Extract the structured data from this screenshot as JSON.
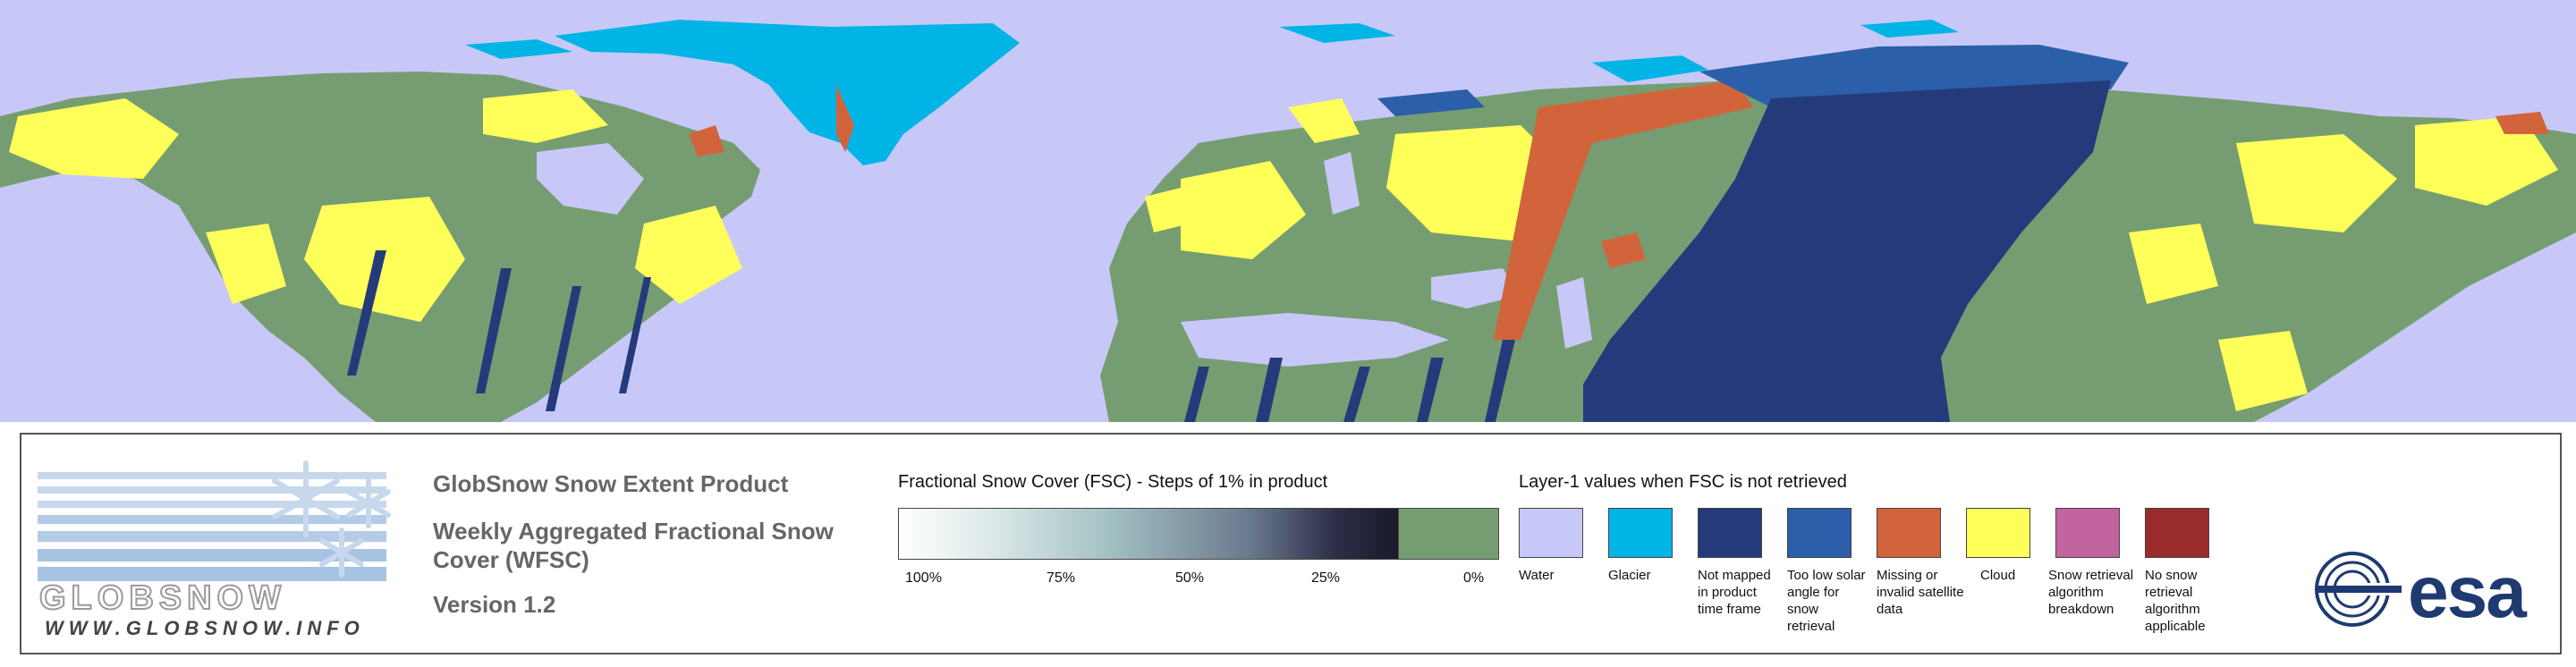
{
  "map": {
    "colors": {
      "water": "#c8c8f8",
      "glacier": "#00b4e6",
      "not_mapped": "#253a7a",
      "too_low_solar": "#2c5faa",
      "missing": "#d2643c",
      "cloud": "#ffff5a",
      "land_0": "#769d72"
    }
  },
  "legend": {
    "product_title": "GlobSnow Snow Extent Product",
    "product_subtitle": "Weekly Aggregated Fractional Snow Cover (WFSC)",
    "version": "Version 1.2",
    "fsc_title": "Fractional Snow Cover (FSC) - Steps of 1% in product",
    "fsc_ticks": [
      "100%",
      "75%",
      "50%",
      "25%",
      "0%"
    ],
    "layer_title": "Layer-1 values when FSC is not retrieved",
    "layer_items": [
      {
        "label": "Water",
        "color": "#c8c8f8"
      },
      {
        "label": "Glacier",
        "color": "#00b4e6"
      },
      {
        "label": "Not mapped in product time frame",
        "color": "#253a7a"
      },
      {
        "label": "Too low solar angle for snow retrieval",
        "color": "#2c5faa"
      },
      {
        "label": "Missing or invalid satellite data",
        "color": "#d2643c"
      },
      {
        "label": "Cloud",
        "color": "#ffff5a"
      },
      {
        "label": "Snow retrieval algorithm breakdown",
        "color": "#c264a0"
      },
      {
        "label": "No snow retrieval algorithm applicable",
        "color": "#9a2c2c"
      }
    ]
  },
  "logos": {
    "globsnow_word": "GLOBSNOW",
    "globsnow_url": "WWW.GLOBSNOW.INFO",
    "esa": "esa"
  }
}
